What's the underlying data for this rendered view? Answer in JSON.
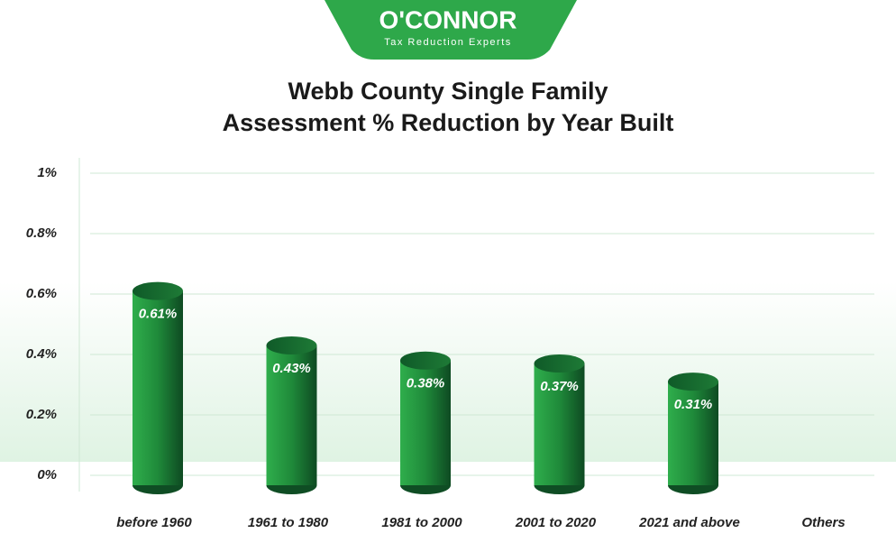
{
  "logo": {
    "name": "O'CONNOR",
    "tagline": "Tax Reduction Experts"
  },
  "chart_data": {
    "type": "bar",
    "title": [
      "Webb County Single Family",
      "Assessment % Reduction by Year Built"
    ],
    "categories": [
      "before 1960",
      "1961 to 1980",
      "1981 to 2000",
      "2001 to 2020",
      "2021 and above",
      "Others"
    ],
    "values": [
      0.61,
      0.43,
      0.38,
      0.37,
      0.31,
      null
    ],
    "value_labels": [
      "0.61%",
      "0.43%",
      "0.38%",
      "0.37%",
      "0.31%",
      null
    ],
    "color": "#1f8a3a",
    "ylim": [
      0,
      1
    ],
    "yticks": [
      {
        "value": 0,
        "label": "0%"
      },
      {
        "value": 0.2,
        "label": "0.2%"
      },
      {
        "value": 0.4,
        "label": "0.4%"
      },
      {
        "value": 0.6,
        "label": "0.6%"
      },
      {
        "value": 0.8,
        "label": "0.8%"
      },
      {
        "value": 1,
        "label": "1%"
      }
    ],
    "grid": true
  }
}
